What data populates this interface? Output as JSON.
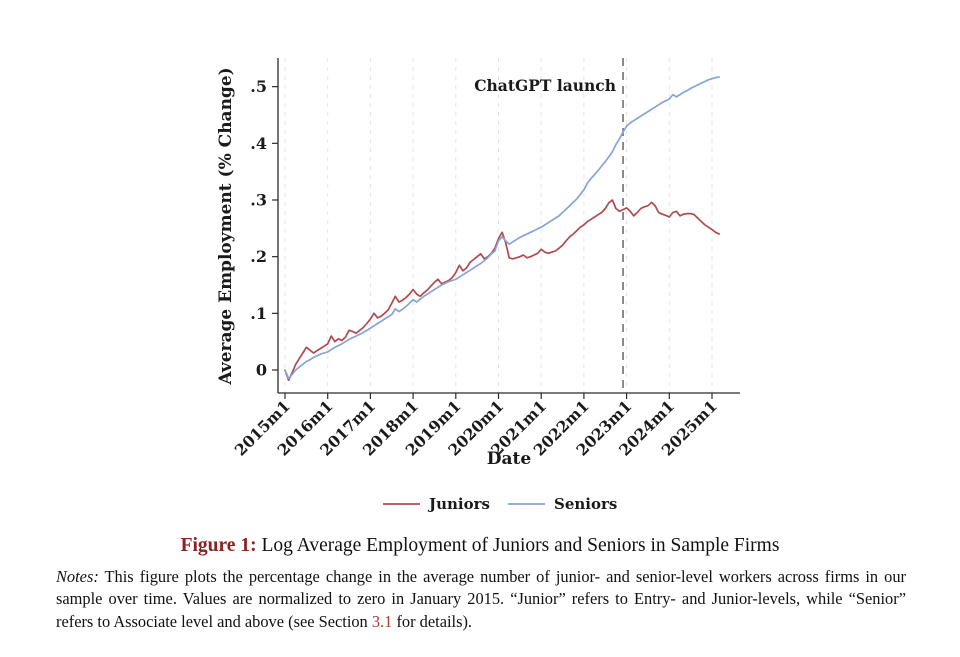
{
  "figure": {
    "caption_label": "Figure 1:",
    "caption_text": " Log Average Employment of Juniors and Seniors in Sample Firms",
    "notes_label": "Notes:",
    "notes_text_1": " This figure plots the percentage change in the average number of junior- and senior-level workers across firms in our sample over time.  Values are normalized to zero in January 2015.  “Junior” refers to Entry- and Junior-levels, while “Senior” refers to Associate level and above (see Section ",
    "notes_link": "3.1",
    "notes_text_2": " for details)."
  },
  "chart_data": {
    "type": "line",
    "title": "",
    "xlabel": "Date",
    "ylabel": "Average Employment (% Change)",
    "x_start": "2015m1",
    "x_step": "1 month",
    "x_tick_labels": [
      "2015m1",
      "2016m1",
      "2017m1",
      "2018m1",
      "2019m1",
      "2020m1",
      "2021m1",
      "2022m1",
      "2023m1",
      "2024m1",
      "2025m1"
    ],
    "x_tick_month_indices": [
      0,
      12,
      24,
      36,
      48,
      60,
      72,
      84,
      96,
      108,
      120
    ],
    "y_ticks": [
      0,
      0.1,
      0.2,
      0.3,
      0.4,
      0.5
    ],
    "y_tick_labels": [
      "0",
      ".1",
      ".2",
      ".3",
      ".4",
      ".5"
    ],
    "ylim": [
      -0.03,
      0.53
    ],
    "grid": "vertical-dashed",
    "legend_position": "bottom-center",
    "annotation": {
      "label": "ChatGPT launch",
      "x": "2022m11",
      "x_index": 95,
      "style": "vertical-dashed-line",
      "color": "#666666",
      "label_color": "#9a9a9a"
    },
    "colors": {
      "grid": "#e4e4e4",
      "axis": "#2b2b2b"
    },
    "series": [
      {
        "name": "Juniors",
        "color": "#b04a50",
        "values": [
          0.0,
          -0.018,
          -0.005,
          0.01,
          0.02,
          0.03,
          0.04,
          0.035,
          0.03,
          0.034,
          0.038,
          0.042,
          0.046,
          0.06,
          0.05,
          0.055,
          0.052,
          0.058,
          0.07,
          0.068,
          0.065,
          0.07,
          0.075,
          0.082,
          0.09,
          0.1,
          0.092,
          0.095,
          0.1,
          0.106,
          0.118,
          0.13,
          0.12,
          0.123,
          0.128,
          0.134,
          0.142,
          0.134,
          0.13,
          0.136,
          0.141,
          0.148,
          0.155,
          0.16,
          0.152,
          0.155,
          0.158,
          0.163,
          0.172,
          0.185,
          0.175,
          0.18,
          0.19,
          0.195,
          0.2,
          0.205,
          0.196,
          0.2,
          0.206,
          0.215,
          0.232,
          0.243,
          0.225,
          0.198,
          0.196,
          0.198,
          0.2,
          0.203,
          0.198,
          0.2,
          0.203,
          0.206,
          0.213,
          0.208,
          0.206,
          0.208,
          0.21,
          0.215,
          0.22,
          0.228,
          0.235,
          0.24,
          0.246,
          0.252,
          0.256,
          0.262,
          0.266,
          0.27,
          0.274,
          0.278,
          0.285,
          0.295,
          0.3,
          0.285,
          0.28,
          0.283,
          0.286,
          0.28,
          0.272,
          0.278,
          0.285,
          0.288,
          0.29,
          0.296,
          0.29,
          0.278,
          0.275,
          0.273,
          0.27,
          0.278,
          0.28,
          0.272,
          0.275,
          0.276,
          0.276,
          0.274,
          0.268,
          0.262,
          0.256,
          0.252,
          0.248,
          0.243,
          0.24
        ]
      },
      {
        "name": "Seniors",
        "color": "#85a4d8",
        "values": [
          0.0,
          -0.015,
          -0.008,
          0.0,
          0.005,
          0.01,
          0.015,
          0.018,
          0.022,
          0.025,
          0.028,
          0.03,
          0.032,
          0.036,
          0.04,
          0.043,
          0.046,
          0.05,
          0.054,
          0.057,
          0.06,
          0.063,
          0.066,
          0.07,
          0.074,
          0.078,
          0.082,
          0.086,
          0.09,
          0.094,
          0.098,
          0.108,
          0.103,
          0.107,
          0.112,
          0.118,
          0.124,
          0.12,
          0.125,
          0.13,
          0.134,
          0.138,
          0.142,
          0.146,
          0.15,
          0.153,
          0.156,
          0.158,
          0.16,
          0.164,
          0.168,
          0.172,
          0.176,
          0.18,
          0.184,
          0.188,
          0.193,
          0.198,
          0.205,
          0.21,
          0.228,
          0.235,
          0.228,
          0.222,
          0.226,
          0.23,
          0.234,
          0.237,
          0.24,
          0.243,
          0.246,
          0.249,
          0.252,
          0.256,
          0.26,
          0.264,
          0.268,
          0.272,
          0.278,
          0.284,
          0.29,
          0.296,
          0.302,
          0.31,
          0.318,
          0.33,
          0.338,
          0.345,
          0.352,
          0.36,
          0.368,
          0.376,
          0.385,
          0.398,
          0.408,
          0.42,
          0.43,
          0.436,
          0.44,
          0.444,
          0.448,
          0.452,
          0.456,
          0.46,
          0.464,
          0.468,
          0.472,
          0.475,
          0.478,
          0.486,
          0.482,
          0.486,
          0.49,
          0.493,
          0.497,
          0.5,
          0.503,
          0.506,
          0.509,
          0.512,
          0.514,
          0.516,
          0.517
        ]
      }
    ]
  }
}
